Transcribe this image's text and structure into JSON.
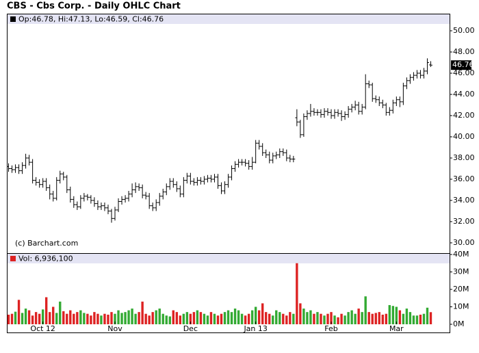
{
  "chart_data": {
    "type": "ohlc",
    "title": "CBS - Cbs Corp. - Daily OHLC Chart",
    "info": "Op:46.78, Hi:47.13, Lo:46.59, Cl:46.76",
    "credit": "(c) Barchart.com",
    "categories": [
      null,
      null,
      null,
      null,
      null,
      null,
      null,
      null,
      null,
      null,
      "Oct 12",
      null,
      null,
      null,
      null,
      null,
      null,
      null,
      null,
      null,
      null,
      null,
      null,
      null,
      null,
      null,
      null,
      null,
      null,
      null,
      null,
      "Nov",
      null,
      null,
      null,
      null,
      null,
      null,
      null,
      null,
      null,
      null,
      null,
      null,
      null,
      null,
      null,
      null,
      null,
      null,
      null,
      null,
      null,
      "Dec",
      null,
      null,
      null,
      null,
      null,
      null,
      null,
      null,
      null,
      null,
      null,
      null,
      null,
      null,
      null,
      null,
      null,
      null,
      "Jan 13",
      null,
      null,
      null,
      null,
      null,
      null,
      null,
      null,
      null,
      null,
      null,
      null,
      null,
      null,
      null,
      null,
      null,
      null,
      null,
      null,
      null,
      "Feb",
      null,
      null,
      null,
      null,
      null,
      null,
      null,
      null,
      null,
      null,
      null,
      null,
      null,
      null,
      null,
      null,
      null,
      null,
      "Mar",
      null,
      null,
      null,
      null,
      null,
      null,
      null,
      null,
      null,
      null
    ],
    "ohlc": [
      [
        37.2,
        37.5,
        36.7,
        37.0
      ],
      [
        37.0,
        37.3,
        36.6,
        36.9
      ],
      [
        36.9,
        37.4,
        36.6,
        37.1
      ],
      [
        37.1,
        37.4,
        36.5,
        36.8
      ],
      [
        36.8,
        37.6,
        36.5,
        37.3
      ],
      [
        37.3,
        38.4,
        37.0,
        38.0
      ],
      [
        38.0,
        38.3,
        37.3,
        37.6
      ],
      [
        37.6,
        37.9,
        35.6,
        35.9
      ],
      [
        35.9,
        36.2,
        35.4,
        35.7
      ],
      [
        35.7,
        36.0,
        35.2,
        35.5
      ],
      [
        35.5,
        36.1,
        35.2,
        35.8
      ],
      [
        35.8,
        36.1,
        34.9,
        35.2
      ],
      [
        35.2,
        35.5,
        34.1,
        34.6
      ],
      [
        34.6,
        34.9,
        33.9,
        34.2
      ],
      [
        34.2,
        36.2,
        34.0,
        35.9
      ],
      [
        35.9,
        36.8,
        35.6,
        36.5
      ],
      [
        36.5,
        36.7,
        35.9,
        36.2
      ],
      [
        36.2,
        36.4,
        34.7,
        35.0
      ],
      [
        35.0,
        35.3,
        33.8,
        34.1
      ],
      [
        34.1,
        34.4,
        33.3,
        33.6
      ],
      [
        33.6,
        33.9,
        33.1,
        33.4
      ],
      [
        33.4,
        34.5,
        33.2,
        34.2
      ],
      [
        34.2,
        34.7,
        33.9,
        34.4
      ],
      [
        34.4,
        34.6,
        34.0,
        34.3
      ],
      [
        34.3,
        34.5,
        33.7,
        34.0
      ],
      [
        34.0,
        34.3,
        33.4,
        33.7
      ],
      [
        33.7,
        34.0,
        33.1,
        33.4
      ],
      [
        33.4,
        33.8,
        33.1,
        33.5
      ],
      [
        33.5,
        33.8,
        33.0,
        33.3
      ],
      [
        33.3,
        33.6,
        32.7,
        33.0
      ],
      [
        33.0,
        33.2,
        31.9,
        32.3
      ],
      [
        32.3,
        33.4,
        32.1,
        33.1
      ],
      [
        33.1,
        34.2,
        32.9,
        33.9
      ],
      [
        33.9,
        34.4,
        33.6,
        34.1
      ],
      [
        34.1,
        34.5,
        33.8,
        34.2
      ],
      [
        34.2,
        34.9,
        33.9,
        34.6
      ],
      [
        34.6,
        35.6,
        34.3,
        35.0
      ],
      [
        35.0,
        35.7,
        34.7,
        35.3
      ],
      [
        35.3,
        35.6,
        34.9,
        35.2
      ],
      [
        35.2,
        35.5,
        34.2,
        34.5
      ],
      [
        34.5,
        34.8,
        34.1,
        34.4
      ],
      [
        34.4,
        34.7,
        33.2,
        33.5
      ],
      [
        33.5,
        33.8,
        33.0,
        33.3
      ],
      [
        33.3,
        34.1,
        33.0,
        33.8
      ],
      [
        33.8,
        34.7,
        33.5,
        34.4
      ],
      [
        34.4,
        35.1,
        34.1,
        34.8
      ],
      [
        34.8,
        35.6,
        34.5,
        35.3
      ],
      [
        35.3,
        36.1,
        35.0,
        35.8
      ],
      [
        35.8,
        36.1,
        35.2,
        35.5
      ],
      [
        35.5,
        35.8,
        34.8,
        35.1
      ],
      [
        35.1,
        35.4,
        34.3,
        34.6
      ],
      [
        34.6,
        36.2,
        34.3,
        35.9
      ],
      [
        35.9,
        36.6,
        35.6,
        36.3
      ],
      [
        36.3,
        36.6,
        35.5,
        35.8
      ],
      [
        35.8,
        36.1,
        35.4,
        35.7
      ],
      [
        35.7,
        36.2,
        35.4,
        35.9
      ],
      [
        35.9,
        36.2,
        35.5,
        35.8
      ],
      [
        35.8,
        36.3,
        35.5,
        36.0
      ],
      [
        36.0,
        36.4,
        35.7,
        36.1
      ],
      [
        36.1,
        36.4,
        35.7,
        36.0
      ],
      [
        36.0,
        36.5,
        35.7,
        36.2
      ],
      [
        36.2,
        36.5,
        35.1,
        35.4
      ],
      [
        35.4,
        35.7,
        34.6,
        34.9
      ],
      [
        34.9,
        35.8,
        34.6,
        35.5
      ],
      [
        35.5,
        36.5,
        35.2,
        36.2
      ],
      [
        36.2,
        37.3,
        35.9,
        37.0
      ],
      [
        37.0,
        37.7,
        36.7,
        37.4
      ],
      [
        37.4,
        37.9,
        37.1,
        37.6
      ],
      [
        37.6,
        37.9,
        37.3,
        37.6
      ],
      [
        37.6,
        37.9,
        37.2,
        37.5
      ],
      [
        37.5,
        37.8,
        36.9,
        37.2
      ],
      [
        37.2,
        38.1,
        36.9,
        37.6
      ],
      [
        37.6,
        39.7,
        37.5,
        39.4
      ],
      [
        39.4,
        39.7,
        38.8,
        39.1
      ],
      [
        39.1,
        39.4,
        38.2,
        38.5
      ],
      [
        38.5,
        38.8,
        38.0,
        38.3
      ],
      [
        38.3,
        38.6,
        37.5,
        37.8
      ],
      [
        37.8,
        38.5,
        37.5,
        38.2
      ],
      [
        38.2,
        38.6,
        37.9,
        38.3
      ],
      [
        38.3,
        38.9,
        38.0,
        38.6
      ],
      [
        38.6,
        38.9,
        38.2,
        38.5
      ],
      [
        38.5,
        38.8,
        37.7,
        38.0
      ],
      [
        38.0,
        38.3,
        37.6,
        37.9
      ],
      [
        37.9,
        38.2,
        37.6,
        37.9
      ],
      [
        41.8,
        42.6,
        41.0,
        41.4
      ],
      [
        41.4,
        41.6,
        39.9,
        40.2
      ],
      [
        40.2,
        42.2,
        40.0,
        41.9
      ],
      [
        41.9,
        42.5,
        41.6,
        42.2
      ],
      [
        42.2,
        43.1,
        41.9,
        42.4
      ],
      [
        42.4,
        42.7,
        42.0,
        42.3
      ],
      [
        42.3,
        42.6,
        42.0,
        42.3
      ],
      [
        42.3,
        42.6,
        41.8,
        42.1
      ],
      [
        42.1,
        42.7,
        41.8,
        42.4
      ],
      [
        42.4,
        42.7,
        42.0,
        42.3
      ],
      [
        42.3,
        42.6,
        41.7,
        42.0
      ],
      [
        42.0,
        42.6,
        41.7,
        42.3
      ],
      [
        42.3,
        42.6,
        41.9,
        42.2
      ],
      [
        42.2,
        42.5,
        41.5,
        41.9
      ],
      [
        41.9,
        42.4,
        41.6,
        42.1
      ],
      [
        42.1,
        42.9,
        41.8,
        42.6
      ],
      [
        42.6,
        43.1,
        42.3,
        42.8
      ],
      [
        42.8,
        43.4,
        42.5,
        43.0
      ],
      [
        43.0,
        43.3,
        42.1,
        42.4
      ],
      [
        42.4,
        43.1,
        42.1,
        42.8
      ],
      [
        42.8,
        45.9,
        42.6,
        45.0
      ],
      [
        45.0,
        45.3,
        44.6,
        44.9
      ],
      [
        44.9,
        45.1,
        43.3,
        43.6
      ],
      [
        43.6,
        43.9,
        43.2,
        43.5
      ],
      [
        43.5,
        43.8,
        42.9,
        43.2
      ],
      [
        43.2,
        43.5,
        42.7,
        43.0
      ],
      [
        43.0,
        43.2,
        42.0,
        42.3
      ],
      [
        42.3,
        42.8,
        42.0,
        42.5
      ],
      [
        42.5,
        43.5,
        42.2,
        43.2
      ],
      [
        43.2,
        43.8,
        42.9,
        43.5
      ],
      [
        43.5,
        43.8,
        42.8,
        43.3
      ],
      [
        43.3,
        45.1,
        43.0,
        44.8
      ],
      [
        44.8,
        45.6,
        44.5,
        45.3
      ],
      [
        45.3,
        45.9,
        45.0,
        45.6
      ],
      [
        45.6,
        46.1,
        45.3,
        45.8
      ],
      [
        45.8,
        46.3,
        45.5,
        46.0
      ],
      [
        46.0,
        46.3,
        45.5,
        45.8
      ],
      [
        45.8,
        46.5,
        45.5,
        46.2
      ],
      [
        46.2,
        47.4,
        45.9,
        47.0
      ],
      [
        46.78,
        47.13,
        46.59,
        46.76
      ]
    ],
    "ylim": [
      29.03,
      50.58
    ],
    "yticks": [
      {
        "value": 30,
        "label": "30.00"
      },
      {
        "value": 32,
        "label": "32.00"
      },
      {
        "value": 34,
        "label": "34.00"
      },
      {
        "value": 36,
        "label": "36.00"
      },
      {
        "value": 38,
        "label": "38.00"
      },
      {
        "value": 40,
        "label": "40.00"
      },
      {
        "value": 42,
        "label": "42.00"
      },
      {
        "value": 44,
        "label": "44.00"
      },
      {
        "value": 46,
        "label": "46.00"
      },
      {
        "value": 48,
        "label": "48.00"
      },
      {
        "value": 50,
        "label": "50.00"
      }
    ],
    "bar_color": "#000000",
    "up_color": "#33aa33",
    "down_color": "#dd2222",
    "volume_info": "Vol: 6,936,100",
    "volume": [
      5.5,
      6.0,
      7.2,
      14.0,
      6.5,
      9.0,
      8.0,
      5.0,
      7.0,
      6.0,
      8.5,
      15.5,
      7.0,
      10.0,
      6.5,
      13.0,
      7.5,
      6.0,
      8.0,
      6.0,
      7.0,
      8.0,
      6.5,
      6.0,
      5.0,
      7.0,
      6.0,
      5.0,
      6.0,
      5.5,
      7.0,
      6.0,
      8.0,
      6.5,
      7.0,
      8.0,
      9.0,
      6.0,
      7.0,
      13.0,
      6.0,
      5.0,
      7.0,
      8.0,
      9.0,
      6.0,
      5.0,
      4.5,
      8.0,
      7.0,
      5.0,
      6.0,
      7.0,
      6.0,
      7.0,
      8.0,
      7.0,
      6.0,
      5.0,
      7.0,
      6.0,
      5.0,
      6.0,
      7.0,
      8.0,
      7.0,
      9.0,
      8.0,
      6.0,
      5.0,
      6.0,
      8.0,
      10.0,
      8.0,
      12.0,
      7.0,
      6.0,
      5.0,
      8.0,
      7.0,
      6.0,
      5.0,
      7.0,
      6.0,
      35.0,
      12.0,
      9.0,
      7.0,
      8.0,
      6.0,
      7.0,
      6.0,
      5.0,
      6.0,
      7.0,
      5.0,
      4.0,
      6.0,
      5.0,
      7.0,
      8.0,
      6.0,
      9.0,
      7.0,
      16.0,
      7.0,
      6.0,
      6.5,
      7.0,
      5.5,
      6.0,
      11.0,
      10.5,
      10.0,
      8.0,
      6.0,
      9.0,
      7.0,
      5.0,
      5.0,
      5.5,
      6.0,
      9.5,
      6.9361
    ],
    "vol_ylim": [
      0,
      40
    ],
    "vol_ticks": [
      {
        "value": 0,
        "label": "0M"
      },
      {
        "value": 10,
        "label": "10M"
      },
      {
        "value": 20,
        "label": "20M"
      },
      {
        "value": 30,
        "label": "30M"
      },
      {
        "value": 40,
        "label": "40M"
      }
    ]
  }
}
